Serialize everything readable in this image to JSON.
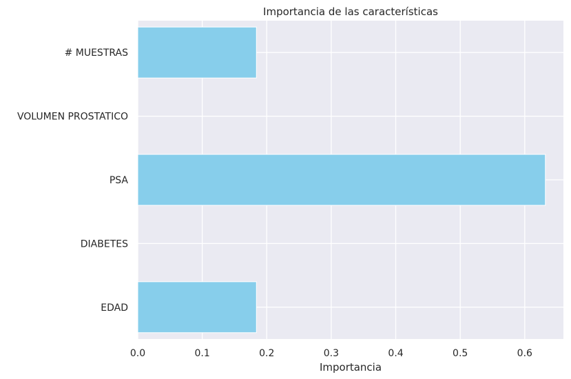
{
  "chart_data": {
    "type": "bar",
    "orientation": "horizontal",
    "title": "Importancia de las características",
    "xlabel": "Importancia",
    "ylabel": "",
    "categories": [
      "EDAD",
      "DIABETES",
      "PSA",
      "VOLUMEN PROSTATICO",
      "# MUESTRAS"
    ],
    "values": [
      0.184,
      0.0,
      0.632,
      0.0,
      0.184
    ],
    "xlim": [
      0,
      0.66
    ],
    "xticks": [
      0.0,
      0.1,
      0.2,
      0.3,
      0.4,
      0.5,
      0.6
    ],
    "xtick_labels": [
      "0.0",
      "0.1",
      "0.2",
      "0.3",
      "0.4",
      "0.5",
      "0.6"
    ],
    "grid": true,
    "colors": {
      "bar": "#87ceeb",
      "plot_background": "#eaeaf2",
      "grid": "#ffffff",
      "text": "#262626"
    }
  }
}
